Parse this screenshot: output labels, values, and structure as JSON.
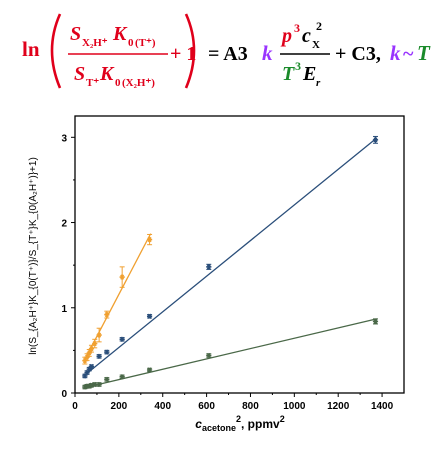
{
  "formula": {
    "ln": "ln",
    "num_S": "S",
    "num_S_sub": "X₂H⁺",
    "num_K": "K",
    "num_K_sub0": "0",
    "num_K_sub_paren": "T⁺",
    "den_S": "S",
    "den_S_sub": "T⁺",
    "den_K": "K",
    "den_K_sub0": "0",
    "den_K_sub_paren": "X₂H⁺",
    "plus_one": "+ 1",
    "equals_A3": "= A3",
    "k": "k",
    "rhs_num_p": "p",
    "rhs_num_p_exp": "3",
    "rhs_num_c": "c",
    "rhs_num_c_sub": "X",
    "rhs_num_c_exp": "2",
    "rhs_den_T": "T",
    "rhs_den_T_exp": "3",
    "rhs_den_E": "E",
    "rhs_den_E_sub": "r",
    "plus_C3": "+ C3,",
    "k2": "k",
    "tilde": "~",
    "T": "T",
    "colors": {
      "red": "#e0001b",
      "green": "#1a8a2a",
      "purple": "#9933ff",
      "black": "#000000"
    }
  },
  "chart_data": {
    "type": "scatter",
    "xlabel_main": "c",
    "xlabel_sub": "acetone",
    "xlabel_sup": "2",
    "xlabel_unit": ", ppmv",
    "xlabel_unit_sup": "2",
    "ylabel": "ln(S_{A₂H⁺}K_{0(T⁺)}/S_{T⁺}K_{0(A₂H⁺)}+1)",
    "xlim": [
      0,
      1500
    ],
    "ylim": [
      0,
      3.25
    ],
    "x_ticks": [
      "0",
      "200",
      "400",
      "600",
      "800",
      "1000",
      "1200",
      "1400"
    ],
    "y_ticks": [
      "0",
      "1",
      "2",
      "3"
    ],
    "grid": false,
    "series": [
      {
        "color": "#f0a030",
        "points": [
          {
            "x": 45,
            "y": 0.38,
            "err": 0.04
          },
          {
            "x": 55,
            "y": 0.42,
            "err": 0.04
          },
          {
            "x": 65,
            "y": 0.47,
            "err": 0.04
          },
          {
            "x": 75,
            "y": 0.52,
            "err": 0.04
          },
          {
            "x": 90,
            "y": 0.58,
            "err": 0.05
          },
          {
            "x": 110,
            "y": 0.68,
            "err": 0.08
          },
          {
            "x": 145,
            "y": 0.92,
            "err": 0.04
          },
          {
            "x": 215,
            "y": 1.36,
            "err": 0.12
          },
          {
            "x": 340,
            "y": 1.8,
            "err": 0.06
          }
        ],
        "fit": [
          [
            40,
            0.37
          ],
          [
            345,
            1.87
          ]
        ]
      },
      {
        "color": "#2a4e7a",
        "points": [
          {
            "x": 45,
            "y": 0.2,
            "err": 0.02
          },
          {
            "x": 55,
            "y": 0.24,
            "err": 0.02
          },
          {
            "x": 65,
            "y": 0.28,
            "err": 0.02
          },
          {
            "x": 75,
            "y": 0.31,
            "err": 0.02
          },
          {
            "x": 110,
            "y": 0.43,
            "err": 0.02
          },
          {
            "x": 145,
            "y": 0.48,
            "err": 0.02
          },
          {
            "x": 215,
            "y": 0.63,
            "err": 0.02
          },
          {
            "x": 340,
            "y": 0.9,
            "err": 0.02
          },
          {
            "x": 610,
            "y": 1.48,
            "err": 0.03
          },
          {
            "x": 1370,
            "y": 2.97,
            "err": 0.04
          }
        ],
        "fit": [
          [
            40,
            0.2
          ],
          [
            1375,
            2.99
          ]
        ]
      },
      {
        "color": "#4a6848",
        "points": [
          {
            "x": 45,
            "y": 0.07,
            "err": 0.02
          },
          {
            "x": 55,
            "y": 0.08,
            "err": 0.02
          },
          {
            "x": 65,
            "y": 0.08,
            "err": 0.02
          },
          {
            "x": 75,
            "y": 0.09,
            "err": 0.02
          },
          {
            "x": 90,
            "y": 0.1,
            "err": 0.02
          },
          {
            "x": 110,
            "y": 0.1,
            "err": 0.02
          },
          {
            "x": 145,
            "y": 0.16,
            "err": 0.02
          },
          {
            "x": 215,
            "y": 0.19,
            "err": 0.02
          },
          {
            "x": 340,
            "y": 0.27,
            "err": 0.02
          },
          {
            "x": 610,
            "y": 0.44,
            "err": 0.02
          },
          {
            "x": 1370,
            "y": 0.84,
            "err": 0.03
          }
        ],
        "fit": [
          [
            40,
            0.06
          ],
          [
            1375,
            0.87
          ]
        ]
      }
    ]
  }
}
